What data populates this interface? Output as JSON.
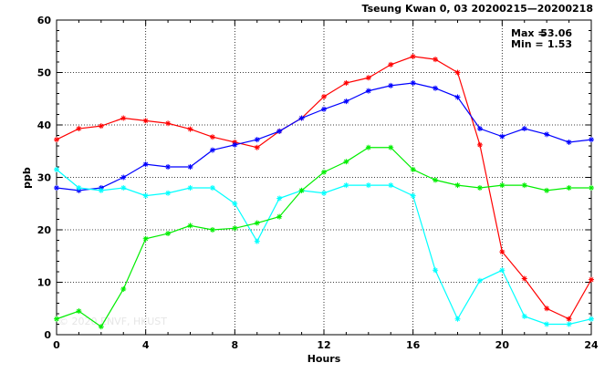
{
  "chart_data": {
    "type": "line",
    "title": "Tseung Kwan 0, 03 20200215—20200218",
    "xlabel": "Hours",
    "ylabel": "ppb",
    "xlim": [
      0,
      24
    ],
    "ylim": [
      0,
      60
    ],
    "xticks": [
      0,
      4,
      8,
      12,
      16,
      20,
      24
    ],
    "yticks": [
      0,
      10,
      20,
      30,
      40,
      50,
      60
    ],
    "grid": true,
    "annotations": {
      "max_label": "Max =",
      "max_value": "53.06",
      "min_label": "Min =",
      "min_value": "1.53"
    },
    "watermark": "© 2020 ENVF, HKUST",
    "x": [
      0,
      1,
      2,
      3,
      4,
      5,
      6,
      7,
      8,
      9,
      10,
      11,
      12,
      13,
      14,
      15,
      16,
      17,
      18,
      19,
      20,
      21,
      22,
      23,
      24
    ],
    "series": [
      {
        "color": "#ff0000",
        "values": [
          37.2,
          39.3,
          39.8,
          41.3,
          40.8,
          40.3,
          39.2,
          37.7,
          36.7,
          35.7,
          38.8,
          41.3,
          45.4,
          48.0,
          49.0,
          51.5,
          53.06,
          52.5,
          50.0,
          36.2,
          15.8,
          10.7,
          5.0,
          3.0,
          10.5
        ]
      },
      {
        "color": "#0000ff",
        "values": [
          28.0,
          27.5,
          28.0,
          30.0,
          32.5,
          32.0,
          32.0,
          35.2,
          36.2,
          37.2,
          38.8,
          41.3,
          43.0,
          44.5,
          46.5,
          47.5,
          48.0,
          47.0,
          45.3,
          39.3,
          37.8,
          39.3,
          38.2,
          36.7,
          37.2
        ]
      },
      {
        "color": "#00ffff",
        "values": [
          31.5,
          28.0,
          27.5,
          28.0,
          26.5,
          27.0,
          28.0,
          28.0,
          25.0,
          17.8,
          26.0,
          27.5,
          27.0,
          28.5,
          28.5,
          28.5,
          26.5,
          12.3,
          3.0,
          10.3,
          12.3,
          3.5,
          2.0,
          2.0,
          3.0
        ]
      },
      {
        "color": "#00ee00",
        "values": [
          3.0,
          4.5,
          1.53,
          8.7,
          18.3,
          19.3,
          20.8,
          20.0,
          20.3,
          21.3,
          22.5,
          27.5,
          31.0,
          33.0,
          35.7,
          35.7,
          31.5,
          29.5,
          28.5,
          28.0,
          28.5,
          28.5,
          27.5,
          28.0,
          28.0
        ]
      }
    ]
  }
}
